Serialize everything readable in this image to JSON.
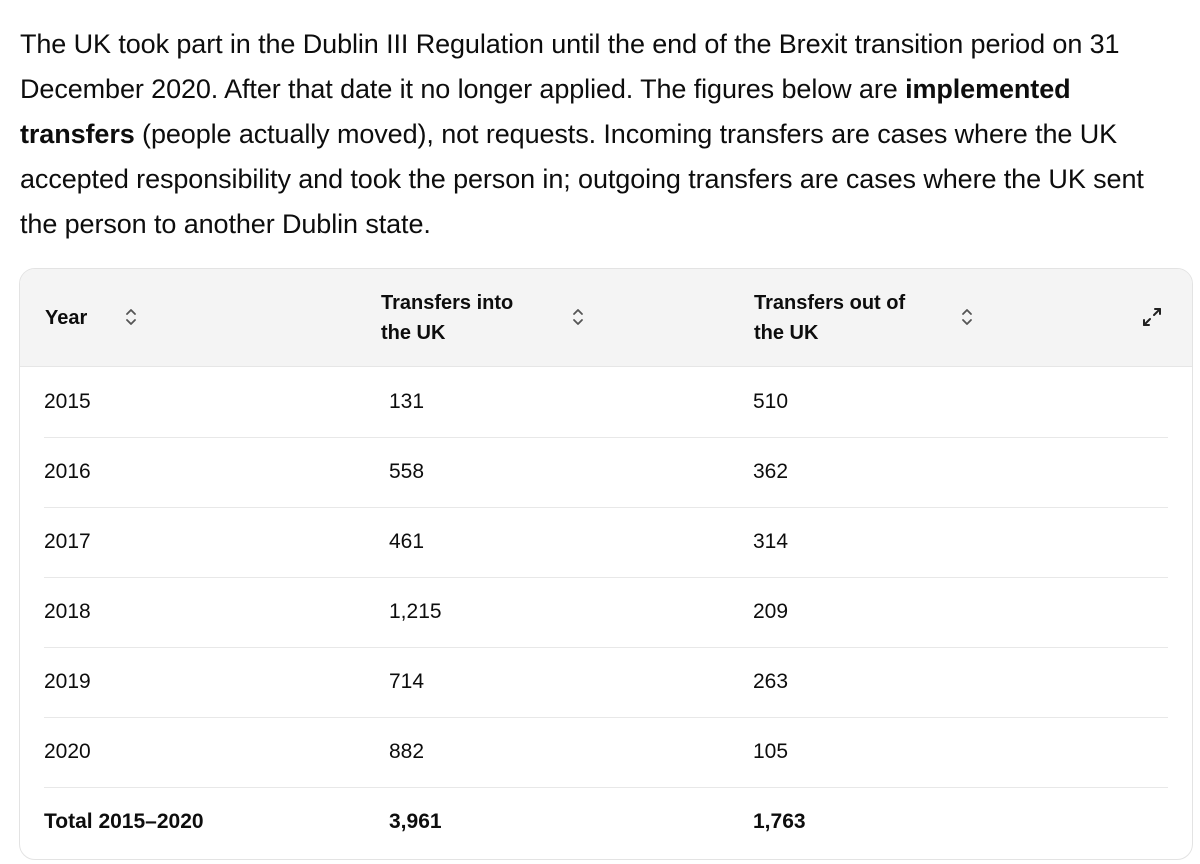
{
  "intro": {
    "part1": "The UK took part in the Dublin III Regulation until the end of the Brexit transition period on 31 December 2020. After that date it no longer applied. The figures below are ",
    "bold": "implemented transfers",
    "part2": " (people actually moved), not requests. Incoming transfers are cases where the UK accepted responsibility and took the person in; outgoing transfers are cases where the UK sent the person to another Dublin state."
  },
  "table": {
    "headers": {
      "year": "Year",
      "into_line1": "Transfers into",
      "into_line2": "the UK",
      "out_line1": "Transfers out of",
      "out_line2": "the UK"
    },
    "rows": [
      {
        "year": "2015",
        "into": "131",
        "out": "510"
      },
      {
        "year": "2016",
        "into": "558",
        "out": "362"
      },
      {
        "year": "2017",
        "into": "461",
        "out": "314"
      },
      {
        "year": "2018",
        "into": "1,215",
        "out": "209"
      },
      {
        "year": "2019",
        "into": "714",
        "out": "263"
      },
      {
        "year": "2020",
        "into": "882",
        "out": "105"
      }
    ],
    "total": {
      "label": "Total 2015–2020",
      "into": "3,961",
      "out": "1,763"
    },
    "icons": {
      "sort": "sort-chevrons-icon",
      "expand": "expand-arrows-icon"
    }
  }
}
